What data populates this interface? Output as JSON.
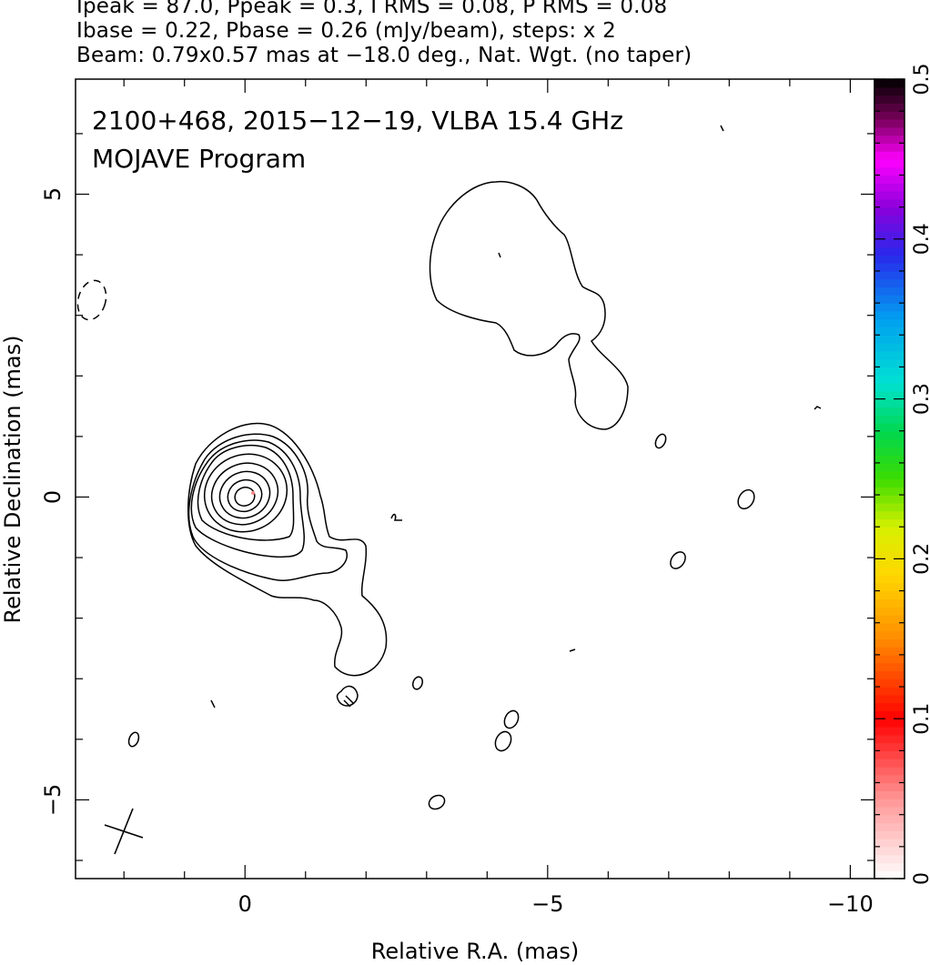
{
  "header": {
    "line1": "Ipeak = 87.0, Ppeak = 0.3, I RMS = 0.08, P RMS = 0.08",
    "line2": "Ibase = 0.22, Pbase = 0.26 (mJy/beam), steps: x 2",
    "line3": "Beam: 0.79x0.57 mas at −18.0 deg., Nat. Wgt. (no taper)"
  },
  "plot": {
    "title_line1": "2100+468, 2015−12−19, VLBA 15.4 GHz",
    "title_line2": "MOJAVE Program"
  },
  "chart_data": {
    "type": "contour",
    "xlabel": "Relative R.A. (mas)",
    "ylabel": "Relative Declination (mas)",
    "xlim": [
      2.8,
      -10.4
    ],
    "ylim": [
      -6.3,
      6.9
    ],
    "x_ticks": [
      {
        "v": 0,
        "label": "0"
      },
      {
        "v": -5,
        "label": "−5"
      },
      {
        "v": -10,
        "label": "−10"
      }
    ],
    "y_ticks": [
      {
        "v": 5,
        "label": "5"
      },
      {
        "v": 0,
        "label": "0"
      },
      {
        "v": -5,
        "label": "−5"
      }
    ],
    "colorbar": {
      "range": [
        0,
        0.5
      ],
      "ticks": [
        {
          "v": 0,
          "label": "0"
        },
        {
          "v": 0.1,
          "label": "0.1"
        },
        {
          "v": 0.2,
          "label": "0.2"
        },
        {
          "v": 0.3,
          "label": "0.3"
        },
        {
          "v": 0.4,
          "label": "0.4"
        },
        {
          "v": 0.5,
          "label": "0.5"
        }
      ]
    },
    "core": {
      "x": 0.05,
      "y": 0.05
    },
    "contour_levels_mJy_per_beam": [
      0.22,
      0.44,
      0.88,
      1.76,
      3.52,
      7.04,
      14.08,
      28.16,
      56.32
    ],
    "beam": {
      "major_mas": 0.79,
      "minor_mas": 0.57,
      "pa_deg": -18.0,
      "x": 1.9,
      "y": -5.5
    }
  }
}
